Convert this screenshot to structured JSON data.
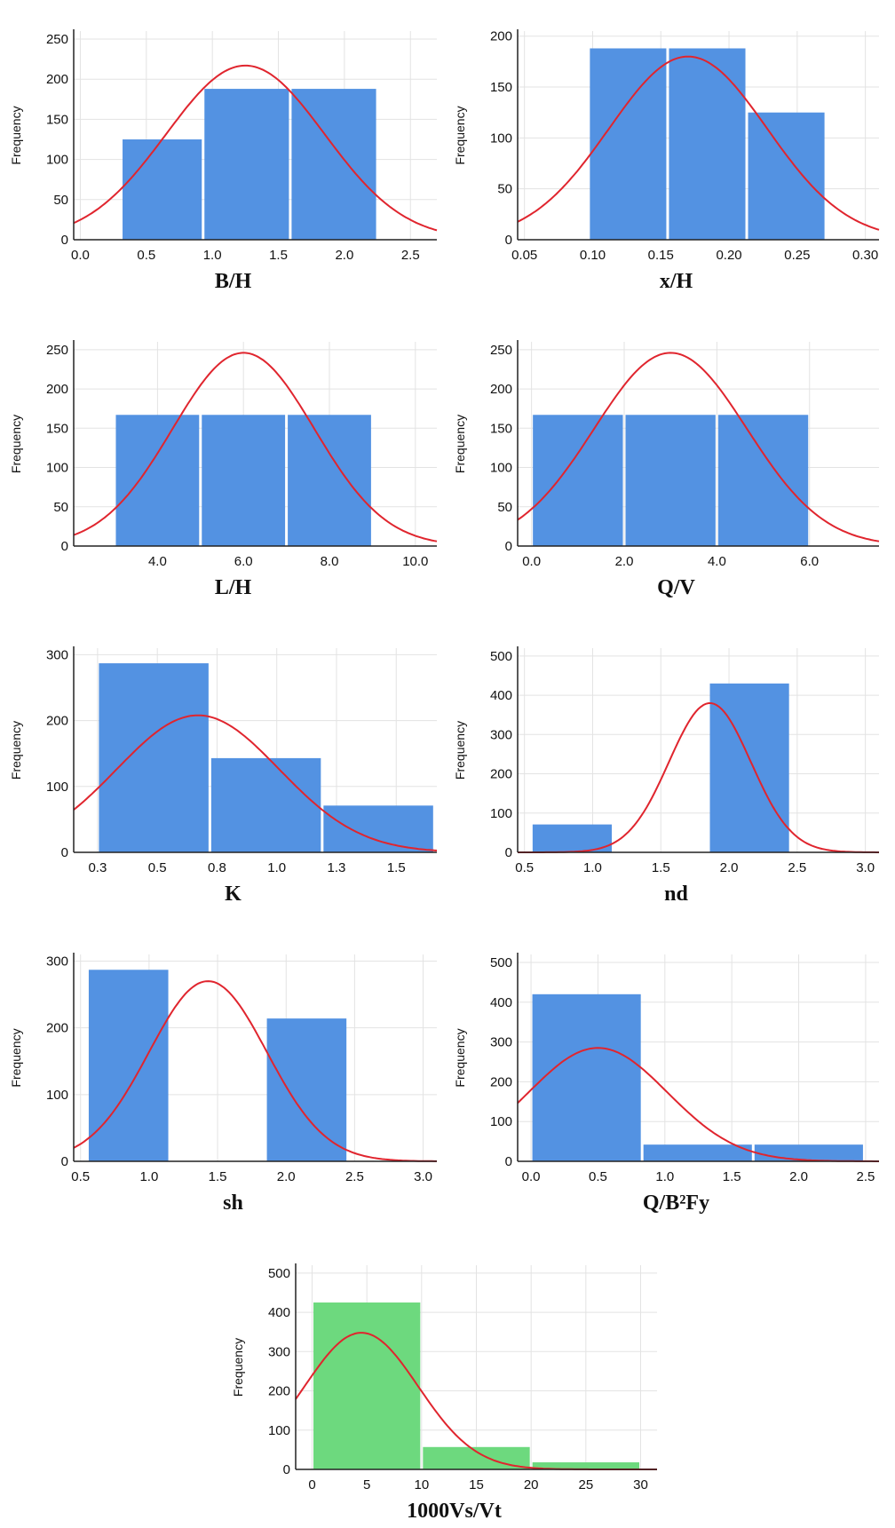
{
  "chart_data": [
    {
      "type": "bar",
      "title": "",
      "xlabel": "B/H",
      "ylabel": "Frequency",
      "xlim": [
        -0.05,
        2.7
      ],
      "ylim": [
        0,
        260
      ],
      "xticks": [
        0.0,
        0.5,
        1.0,
        1.5,
        2.0,
        2.5
      ],
      "xtick_labels": [
        "0.0",
        "0.5",
        "1.0",
        "1.5",
        "2.0",
        "2.5"
      ],
      "yticks": [
        0,
        50,
        100,
        150,
        200,
        250
      ],
      "ytick_labels": [
        "0",
        "50",
        "100",
        "150",
        "200",
        "250"
      ],
      "bins": [
        [
          0.31,
          0.93
        ],
        [
          0.93,
          1.59
        ],
        [
          1.59,
          2.25
        ]
      ],
      "values": [
        125,
        188,
        188
      ],
      "bar_color": "#5392E2",
      "normal_curve": {
        "color": "#E0252E",
        "mean": 1.25,
        "sd": 0.6,
        "peak": 217
      }
    },
    {
      "type": "bar",
      "title": "",
      "xlabel": "x/H",
      "ylabel": "Frequency",
      "xlim": [
        0.045,
        0.31
      ],
      "ylim": [
        0,
        205
      ],
      "xticks": [
        0.05,
        0.1,
        0.15,
        0.2,
        0.25,
        0.3
      ],
      "xtick_labels": [
        "0.05",
        "0.10",
        "0.15",
        "0.20",
        "0.25",
        "0.30"
      ],
      "yticks": [
        0,
        50,
        100,
        150,
        200
      ],
      "ytick_labels": [
        "0",
        "50",
        "100",
        "150",
        "200"
      ],
      "bins": [
        [
          0.097,
          0.155
        ],
        [
          0.155,
          0.213
        ],
        [
          0.213,
          0.271
        ]
      ],
      "values": [
        188,
        188,
        125
      ],
      "bar_color": "#5392E2",
      "normal_curve": {
        "color": "#E0252E",
        "mean": 0.17,
        "sd": 0.058,
        "peak": 180
      }
    },
    {
      "type": "bar",
      "title": "",
      "xlabel": "L/H",
      "ylabel": "Frequency",
      "xlim": [
        2.05,
        10.5
      ],
      "ylim": [
        0,
        260
      ],
      "xticks": [
        4.0,
        6.0,
        8.0,
        10.0
      ],
      "xtick_labels": [
        "4.0",
        "6.0",
        "8.0",
        "10.0"
      ],
      "yticks": [
        0,
        50,
        100,
        150,
        200,
        250
      ],
      "ytick_labels": [
        "0",
        "50",
        "100",
        "150",
        "200",
        "250"
      ],
      "bins": [
        [
          3.0,
          5.0
        ],
        [
          5.0,
          7.0
        ],
        [
          7.0,
          9.0
        ]
      ],
      "values": [
        167,
        167,
        167
      ],
      "bar_color": "#5392E2",
      "normal_curve": {
        "color": "#E0252E",
        "mean": 6.0,
        "sd": 1.65,
        "peak": 246
      }
    },
    {
      "type": "bar",
      "title": "",
      "xlabel": "Q/V",
      "ylabel": "Frequency",
      "xlim": [
        -0.3,
        7.5
      ],
      "ylim": [
        0,
        260
      ],
      "xticks": [
        0.0,
        2.0,
        4.0,
        6.0
      ],
      "xtick_labels": [
        "0.0",
        "2.0",
        "4.0",
        "6.0"
      ],
      "yticks": [
        0,
        50,
        100,
        150,
        200,
        250
      ],
      "ytick_labels": [
        "0",
        "50",
        "100",
        "150",
        "200",
        "250"
      ],
      "bins": [
        [
          0.0,
          2.0
        ],
        [
          2.0,
          4.0
        ],
        [
          4.0,
          6.0
        ]
      ],
      "values": [
        167,
        167,
        167
      ],
      "bar_color": "#5392E2",
      "normal_curve": {
        "color": "#E0252E",
        "mean": 3.0,
        "sd": 1.65,
        "peak": 246
      }
    },
    {
      "type": "bar",
      "title": "",
      "xlabel": "K",
      "ylabel": "Frequency",
      "xlim": [
        0.2,
        1.72
      ],
      "ylim": [
        0,
        310
      ],
      "xticks": [
        0.3,
        0.55,
        0.8,
        1.05,
        1.3,
        1.55
      ],
      "xtick_labels": [
        "0.3",
        "0.5",
        "0.8",
        "1.0",
        "1.3",
        "1.5"
      ],
      "yticks": [
        0,
        100,
        200,
        300
      ],
      "ytick_labels": [
        "0",
        "100",
        "200",
        "300"
      ],
      "bins": [
        [
          0.3,
          0.77
        ],
        [
          0.77,
          1.24
        ],
        [
          1.24,
          1.71
        ]
      ],
      "values": [
        287,
        143,
        71
      ],
      "bar_color": "#5392E2",
      "normal_curve": {
        "color": "#E0252E",
        "mean": 0.72,
        "sd": 0.34,
        "peak": 208
      }
    },
    {
      "type": "bar",
      "title": "",
      "xlabel": "nd",
      "ylabel": "Frequency",
      "xlim": [
        0.45,
        3.1
      ],
      "ylim": [
        0,
        520
      ],
      "xticks": [
        0.5,
        1.0,
        1.5,
        2.0,
        2.5,
        3.0
      ],
      "xtick_labels": [
        "0.5",
        "1.0",
        "1.5",
        "2.0",
        "2.5",
        "3.0"
      ],
      "yticks": [
        0,
        100,
        200,
        300,
        400,
        500
      ],
      "ytick_labels": [
        "0",
        "100",
        "200",
        "300",
        "400",
        "500"
      ],
      "bins": [
        [
          0.55,
          1.15
        ],
        [
          1.85,
          2.45
        ]
      ],
      "values": [
        71,
        430
      ],
      "bar_color": "#5392E2",
      "normal_curve": {
        "color": "#E0252E",
        "mean": 1.86,
        "sd": 0.3,
        "peak": 380
      }
    },
    {
      "type": "bar",
      "title": "",
      "xlabel": "sh",
      "ylabel": "Frequency",
      "xlim": [
        0.45,
        3.1
      ],
      "ylim": [
        0,
        310
      ],
      "xticks": [
        0.5,
        1.0,
        1.5,
        2.0,
        2.5,
        3.0
      ],
      "xtick_labels": [
        "0.5",
        "1.0",
        "1.5",
        "2.0",
        "2.5",
        "3.0"
      ],
      "yticks": [
        0,
        100,
        200,
        300
      ],
      "ytick_labels": [
        "0",
        "100",
        "200",
        "300"
      ],
      "bins": [
        [
          0.55,
          1.15
        ],
        [
          1.85,
          2.45
        ]
      ],
      "values": [
        287,
        214
      ],
      "bar_color": "#5392E2",
      "normal_curve": {
        "color": "#E0252E",
        "mean": 1.43,
        "sd": 0.43,
        "peak": 270
      }
    },
    {
      "type": "bar",
      "title": "",
      "xlabel": "Q/B²Fy",
      "ylabel": "Frequency",
      "xlim": [
        -0.1,
        2.6
      ],
      "ylim": [
        0,
        520
      ],
      "xticks": [
        0.0,
        0.5,
        1.0,
        1.5,
        2.0,
        2.5
      ],
      "xtick_labels": [
        "0.0",
        "0.5",
        "1.0",
        "1.5",
        "2.0",
        "2.5"
      ],
      "yticks": [
        0,
        100,
        200,
        300,
        400,
        500
      ],
      "ytick_labels": [
        "0",
        "100",
        "200",
        "300",
        "400",
        "500"
      ],
      "bins": [
        [
          0.0,
          0.83
        ],
        [
          0.83,
          1.66
        ],
        [
          1.66,
          2.49
        ]
      ],
      "values": [
        420,
        42,
        42
      ],
      "bar_color": "#5392E2",
      "normal_curve": {
        "color": "#E0252E",
        "mean": 0.5,
        "sd": 0.52,
        "peak": 285
      }
    },
    {
      "type": "bar",
      "title": "",
      "xlabel": "1000Vs/Vt",
      "ylabel": "Frequency",
      "xlim": [
        -1.5,
        31.5
      ],
      "ylim": [
        0,
        520
      ],
      "xticks": [
        0,
        5,
        10,
        15,
        20,
        25,
        30
      ],
      "xtick_labels": [
        "0",
        "5",
        "10",
        "15",
        "20",
        "25",
        "30"
      ],
      "yticks": [
        0,
        100,
        200,
        300,
        400,
        500
      ],
      "ytick_labels": [
        "0",
        "100",
        "200",
        "300",
        "400",
        "500"
      ],
      "bins": [
        [
          0,
          10
        ],
        [
          10,
          20
        ],
        [
          20,
          30
        ]
      ],
      "values": [
        425,
        57,
        18
      ],
      "bar_color": "#6DD97E",
      "normal_curve": {
        "color": "#E0252E",
        "mean": 4.5,
        "sd": 5.2,
        "peak": 348
      }
    }
  ]
}
